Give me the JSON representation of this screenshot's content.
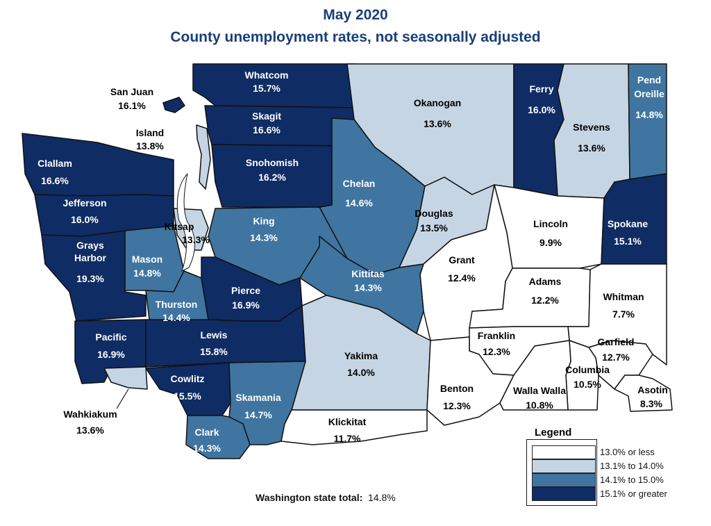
{
  "title": "May 2020",
  "subtitle": "County unemployment rates, not seasonally adjusted",
  "colors": {
    "c1": "#ffffff",
    "c2": "#c5d5e4",
    "c3": "#3f75a0",
    "c4": "#0f2c64",
    "border": "#111111"
  },
  "counties": [
    {
      "name": "Whatcom",
      "rate": "15.7%",
      "cat": 4
    },
    {
      "name": "San Juan",
      "rate": "16.1%",
      "cat": 4
    },
    {
      "name": "Island",
      "rate": "13.8%",
      "cat": 2
    },
    {
      "name": "Skagit",
      "rate": "16.6%",
      "cat": 4
    },
    {
      "name": "Okanogan",
      "rate": "13.6%",
      "cat": 2
    },
    {
      "name": "Ferry",
      "rate": "16.0%",
      "cat": 4
    },
    {
      "name": "Stevens",
      "rate": "13.6%",
      "cat": 2
    },
    {
      "name": "Pend Oreille",
      "rate": "14.8%",
      "cat": 3
    },
    {
      "name": "Clallam",
      "rate": "16.6%",
      "cat": 4
    },
    {
      "name": "Snohomish",
      "rate": "16.2%",
      "cat": 4
    },
    {
      "name": "Chelan",
      "rate": "14.6%",
      "cat": 3
    },
    {
      "name": "Douglas",
      "rate": "13.5%",
      "cat": 2
    },
    {
      "name": "Jefferson",
      "rate": "16.0%",
      "cat": 4
    },
    {
      "name": "Kitsap",
      "rate": "13.3%",
      "cat": 2
    },
    {
      "name": "King",
      "rate": "14.3%",
      "cat": 3
    },
    {
      "name": "Lincoln",
      "rate": "9.9%",
      "cat": 1
    },
    {
      "name": "Spokane",
      "rate": "15.1%",
      "cat": 4
    },
    {
      "name": "Grays Harbor",
      "rate": "19.3%",
      "cat": 4
    },
    {
      "name": "Mason",
      "rate": "14.8%",
      "cat": 3
    },
    {
      "name": "Grant",
      "rate": "12.4%",
      "cat": 1
    },
    {
      "name": "Kittitas",
      "rate": "14.3%",
      "cat": 3
    },
    {
      "name": "Adams",
      "rate": "12.2%",
      "cat": 1
    },
    {
      "name": "Thurston",
      "rate": "14.4%",
      "cat": 3
    },
    {
      "name": "Pierce",
      "rate": "16.9%",
      "cat": 4
    },
    {
      "name": "Whitman",
      "rate": "7.7%",
      "cat": 1
    },
    {
      "name": "Pacific",
      "rate": "16.9%",
      "cat": 4
    },
    {
      "name": "Lewis",
      "rate": "15.8%",
      "cat": 4
    },
    {
      "name": "Franklin",
      "rate": "12.3%",
      "cat": 1
    },
    {
      "name": "Garfield",
      "rate": "12.7%",
      "cat": 1
    },
    {
      "name": "Yakima",
      "rate": "14.0%",
      "cat": 2
    },
    {
      "name": "Columbia",
      "rate": "10.5%",
      "cat": 1
    },
    {
      "name": "Cowlitz",
      "rate": "15.5%",
      "cat": 4
    },
    {
      "name": "Benton",
      "rate": "12.3%",
      "cat": 1
    },
    {
      "name": "Walla Walla",
      "rate": "10.8%",
      "cat": 1
    },
    {
      "name": "Asotin",
      "rate": "8.3%",
      "cat": 1
    },
    {
      "name": "Skamania",
      "rate": "14.7%",
      "cat": 3
    },
    {
      "name": "Wahkiakum",
      "rate": "13.6%",
      "cat": 2
    },
    {
      "name": "Clark",
      "rate": "14.3%",
      "cat": 3
    },
    {
      "name": "Klickitat",
      "rate": "11.7%",
      "cat": 1
    }
  ],
  "legend": {
    "title": "Legend",
    "items": [
      {
        "label": "13.0% or less",
        "cat": 1
      },
      {
        "label": "13.1% to 14.0%",
        "cat": 2
      },
      {
        "label": "14.1% to 15.0%",
        "cat": 3
      },
      {
        "label": "15.1% or greater",
        "cat": 4
      }
    ]
  },
  "state_total": {
    "label": "Washington state total:",
    "value": "14.8%"
  }
}
